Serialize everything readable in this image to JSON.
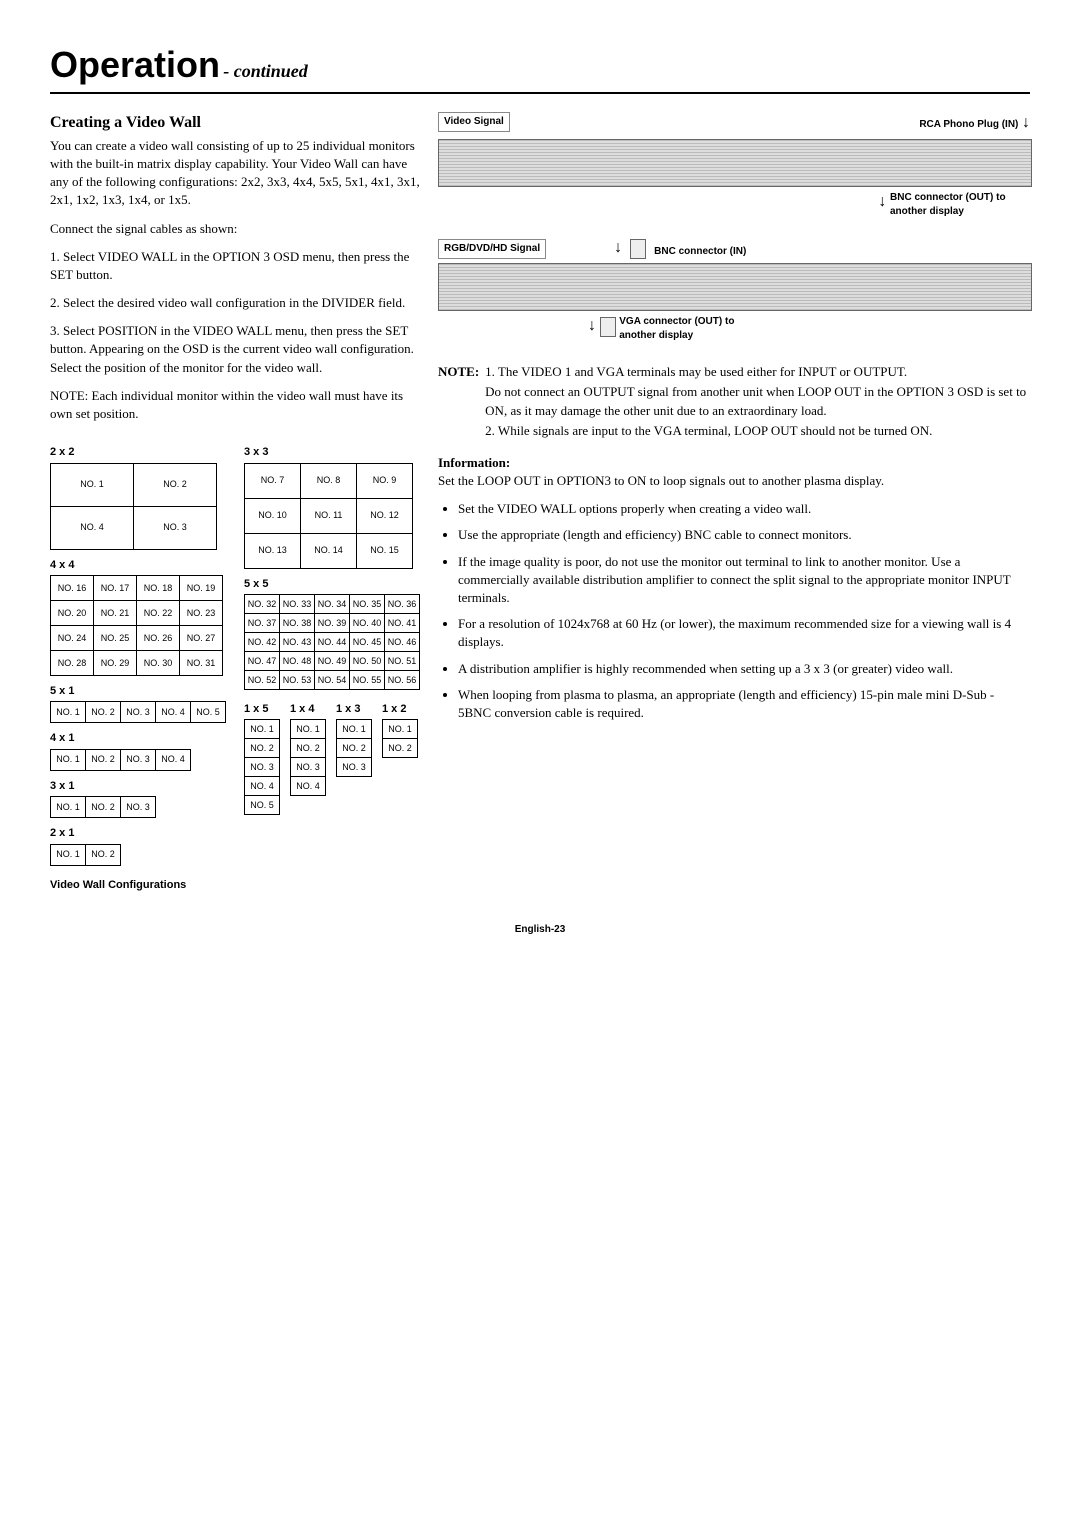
{
  "header": {
    "title": "Operation",
    "subtitle": "- continued"
  },
  "left": {
    "heading": "Creating a Video Wall",
    "p1": "You can create a video wall consisting of up to 25 individual monitors with the built-in matrix display capability. Your Video Wall can have any of the following configurations: 2x2, 3x3, 4x4, 5x5, 5x1, 4x1, 3x1, 2x1, 1x2, 1x3, 1x4, or 1x5.",
    "p2": "Connect the signal cables as shown:",
    "p3": "1. Select VIDEO WALL in the OPTION 3 OSD menu, then press the SET button.",
    "p4": "2. Select the desired video wall configuration in the DIVIDER field.",
    "p5": "3. Select POSITION in the VIDEO WALL menu, then press the SET button. Appearing on the OSD is the current video wall configuration. Select the position of the monitor for the video wall.",
    "p6": "NOTE: Each individual monitor within the video wall must have its own set position.",
    "caption": "Video Wall Configurations"
  },
  "grids": {
    "g2x2": {
      "label": "2 x 2",
      "cols": 2,
      "rows": 2,
      "cells": [
        "NO. 1",
        "NO. 2",
        "NO. 4",
        "NO. 3"
      ],
      "cw": 82,
      "ch": 42
    },
    "g3x3": {
      "label": "3 x 3",
      "cols": 3,
      "rows": 3,
      "cells": [
        "NO. 7",
        "NO. 8",
        "NO. 9",
        "NO. 10",
        "NO. 11",
        "NO. 12",
        "NO. 13",
        "NO. 14",
        "NO. 15"
      ],
      "cw": 55,
      "ch": 34
    },
    "g4x4": {
      "label": "4 x 4",
      "cols": 4,
      "rows": 4,
      "cells": [
        "NO. 16",
        "NO. 17",
        "NO. 18",
        "NO. 19",
        "NO. 20",
        "NO. 21",
        "NO. 22",
        "NO. 23",
        "NO. 24",
        "NO. 25",
        "NO. 26",
        "NO. 27",
        "NO. 28",
        "NO. 29",
        "NO. 30",
        "NO. 31"
      ],
      "cw": 42,
      "ch": 24
    },
    "g5x5": {
      "label": "5 x 5",
      "cols": 5,
      "rows": 5,
      "cells": [
        "NO. 32",
        "NO. 33",
        "NO. 34",
        "NO. 35",
        "NO. 36",
        "NO. 37",
        "NO. 38",
        "NO. 39",
        "NO. 40",
        "NO. 41",
        "NO. 42",
        "NO. 43",
        "NO. 44",
        "NO. 45",
        "NO. 46",
        "NO. 47",
        "NO. 48",
        "NO. 49",
        "NO. 50",
        "NO. 51",
        "NO. 52",
        "NO. 53",
        "NO. 54",
        "NO. 55",
        "NO. 56"
      ],
      "cw": 34,
      "ch": 18
    },
    "g5x1": {
      "label": "5 x 1",
      "cols": 5,
      "rows": 1,
      "cells": [
        "NO. 1",
        "NO. 2",
        "NO. 3",
        "NO. 4",
        "NO. 5"
      ],
      "cw": 34,
      "ch": 20
    },
    "g4x1": {
      "label": "4 x 1",
      "cols": 4,
      "rows": 1,
      "cells": [
        "NO. 1",
        "NO. 2",
        "NO. 3",
        "NO. 4"
      ],
      "cw": 34,
      "ch": 20
    },
    "g3x1": {
      "label": "3 x 1",
      "cols": 3,
      "rows": 1,
      "cells": [
        "NO. 1",
        "NO. 2",
        "NO. 3"
      ],
      "cw": 34,
      "ch": 20
    },
    "g2x1": {
      "label": "2 x 1",
      "cols": 2,
      "rows": 1,
      "cells": [
        "NO. 1",
        "NO. 2"
      ],
      "cw": 34,
      "ch": 20
    },
    "g1x5": {
      "label": "1 x 5",
      "cols": 1,
      "rows": 5,
      "cells": [
        "NO. 1",
        "NO. 2",
        "NO. 3",
        "NO. 4",
        "NO. 5"
      ],
      "cw": 34,
      "ch": 18
    },
    "g1x4": {
      "label": "1 x 4",
      "cols": 1,
      "rows": 4,
      "cells": [
        "NO. 1",
        "NO. 2",
        "NO. 3",
        "NO. 4"
      ],
      "cw": 34,
      "ch": 18
    },
    "g1x3": {
      "label": "1 x 3",
      "cols": 1,
      "rows": 3,
      "cells": [
        "NO. 1",
        "NO. 2",
        "NO. 3"
      ],
      "cw": 34,
      "ch": 18
    },
    "g1x2": {
      "label": "1 x 2",
      "cols": 1,
      "rows": 2,
      "cells": [
        "NO. 1",
        "NO. 2"
      ],
      "cw": 34,
      "ch": 18
    }
  },
  "diagram": {
    "video_signal": "Video Signal",
    "rca_label": "RCA Phono Plug (IN)",
    "bnc_out": "BNC connector (OUT) to another display",
    "rgb_signal": "RGB/DVD/HD Signal",
    "bnc_in": "BNC connector (IN)",
    "vga_out": "VGA connector (OUT) to another display"
  },
  "right": {
    "note_label": "NOTE:",
    "note1": "1. The VIDEO 1 and VGA terminals may be used either for INPUT or OUTPUT.",
    "note2": "Do not connect an OUTPUT signal from another unit when LOOP OUT in the OPTION 3 OSD is set to ON, as it may damage the other unit due to an extraordinary load.",
    "note3": "2. While signals are input to the VGA terminal, LOOP OUT should not be turned ON.",
    "info_h": "Information:",
    "info_p": "Set the LOOP OUT in OPTION3 to ON to loop signals out to another plasma display.",
    "bullets": [
      "Set the VIDEO WALL options properly when creating a video wall.",
      "Use the appropriate (length and efficiency) BNC cable to connect monitors.",
      "If the image quality is poor, do not use the monitor out terminal to link to another monitor. Use a commercially available distribution amplifier to connect the split signal to the appropriate monitor INPUT terminals.",
      "For a resolution of 1024x768 at 60 Hz (or lower), the maximum recommended size for a viewing wall is 4 displays.",
      "A distribution amplifier is highly recommended when setting up a 3 x 3 (or greater) video wall.",
      "When looping from plasma to plasma, an appropriate (length and efficiency) 15-pin male mini D-Sub - 5BNC conversion cable is required."
    ]
  },
  "footer": "English-23"
}
